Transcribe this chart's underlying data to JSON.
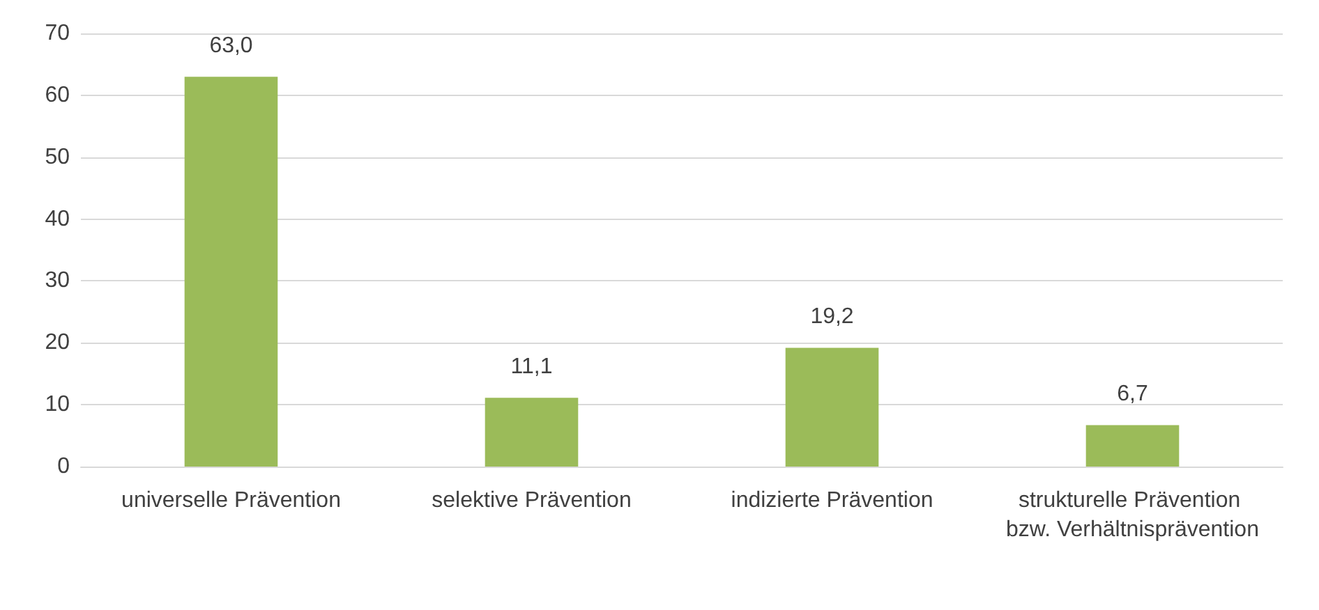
{
  "chart_data": {
    "type": "bar",
    "categories": [
      "universelle Prävention",
      "selektive Prävention",
      "indizierte Prävention",
      "strukturelle Prävention bzw. Verhältnisprävention"
    ],
    "values": [
      63.0,
      11.1,
      19.2,
      6.7
    ],
    "value_labels": [
      "63,0",
      "11,1",
      "19,2",
      "6,7"
    ],
    "color": "#9bbb59",
    "ylim": [
      0,
      70
    ],
    "yticks": [
      0,
      10,
      20,
      30,
      40,
      50,
      60,
      70
    ],
    "grid": "y"
  }
}
